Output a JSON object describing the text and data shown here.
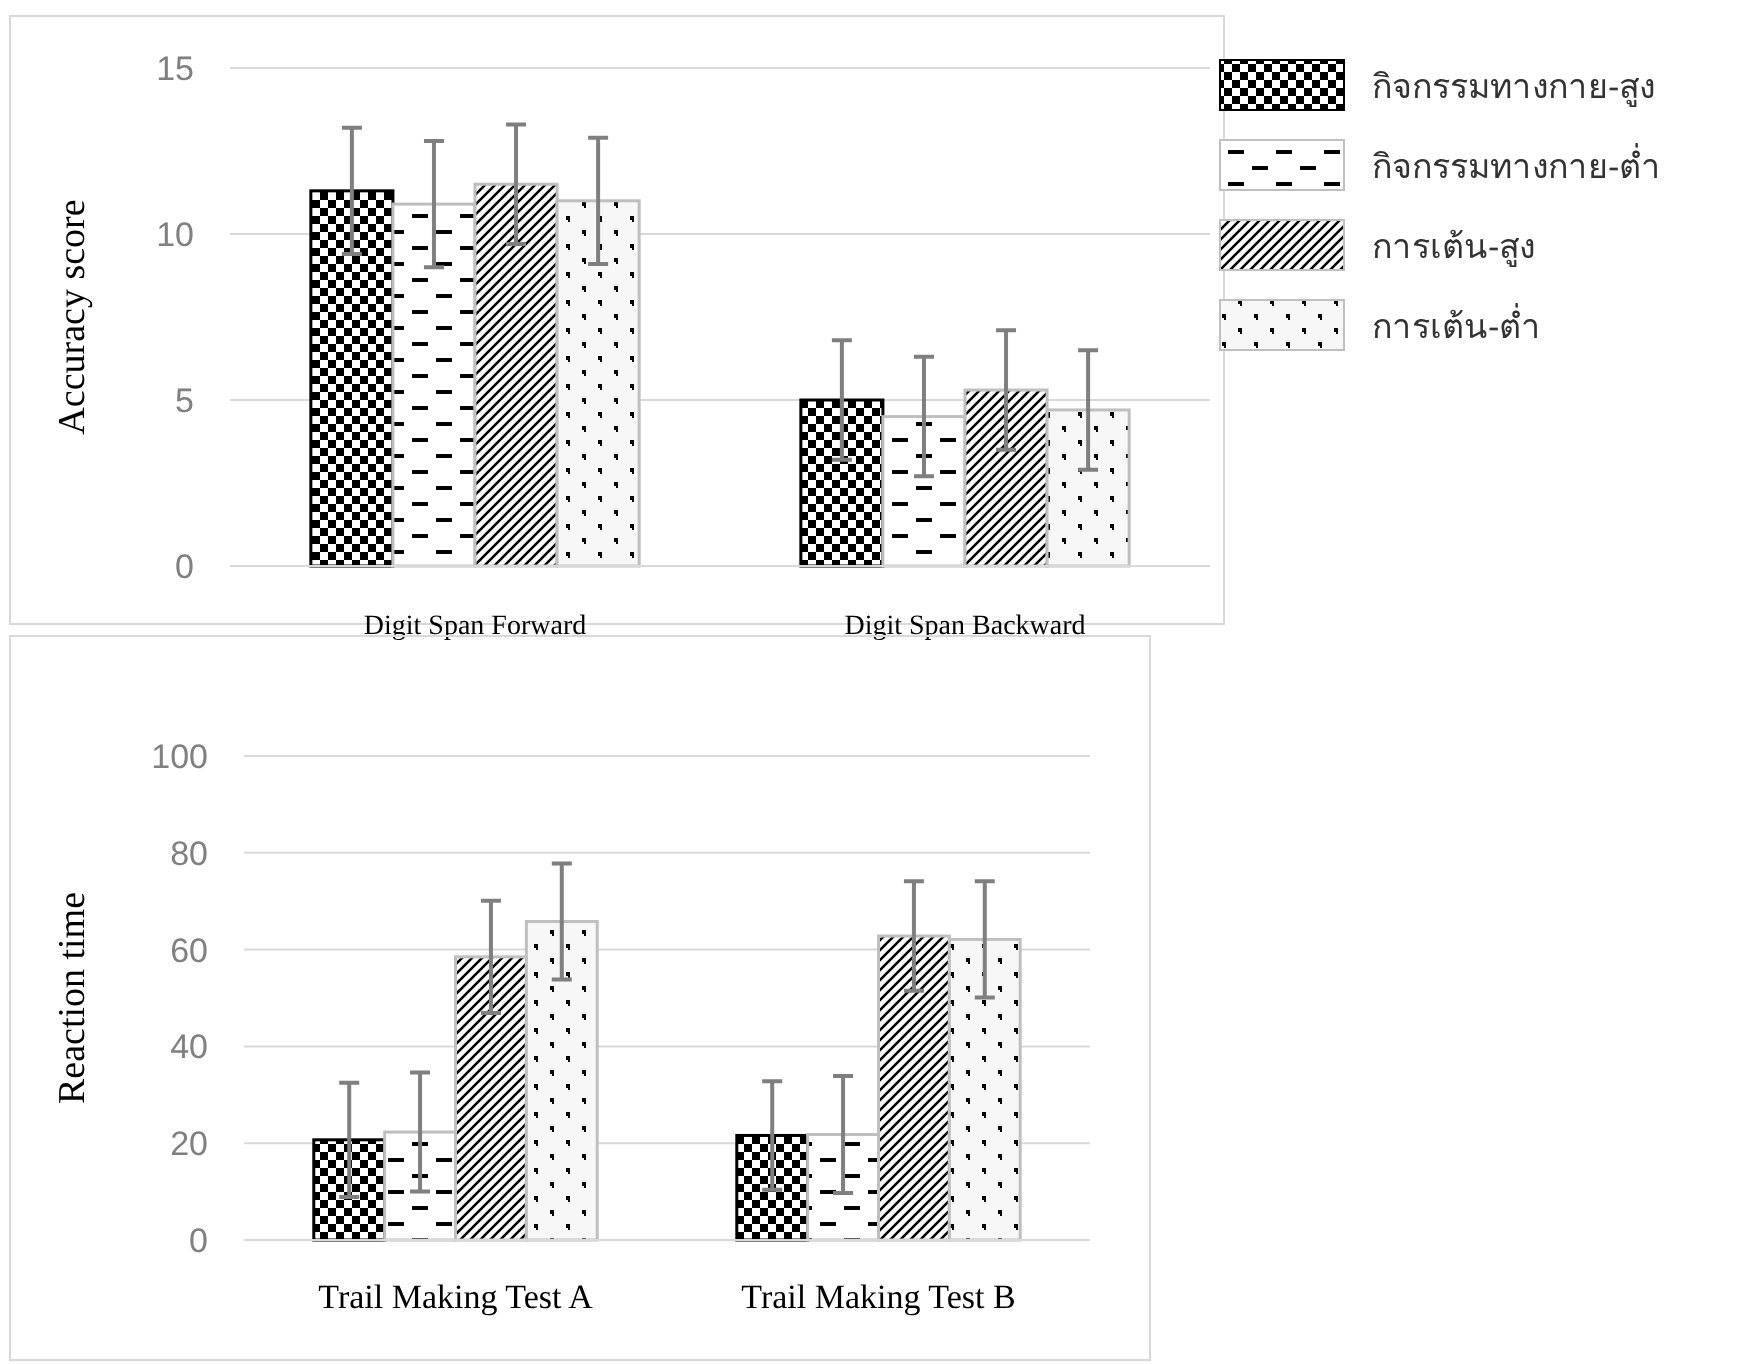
{
  "chart_data": [
    {
      "type": "bar",
      "ylabel": "Accuracy score",
      "categories": [
        "Digit Span Forward",
        "Digit Span Backward"
      ],
      "ylim": [
        0,
        15
      ],
      "yticks": [
        0,
        5,
        10,
        15
      ],
      "grid": "y",
      "legend": "right",
      "series": [
        {
          "name": "กิจกรรมทางกาย-สูง",
          "color": "#000000",
          "values": [
            11.3,
            5.0
          ],
          "errors": [
            1.9,
            1.8
          ]
        },
        {
          "name": "กิจกรรมทางกาย-ต่ำ",
          "color": "#bfbfbf",
          "values": [
            10.9,
            4.5
          ],
          "errors": [
            1.9,
            1.8
          ]
        },
        {
          "name": "การเต้น-สูง",
          "color": "#bfbfbf",
          "values": [
            11.5,
            5.3
          ],
          "errors": [
            1.8,
            1.8
          ]
        },
        {
          "name": "การเต้น-ต่ำ",
          "color": "#bfbfbf",
          "values": [
            11.0,
            4.7
          ],
          "errors": [
            1.9,
            1.8
          ]
        }
      ]
    },
    {
      "type": "bar",
      "ylabel": "Reaction time",
      "categories": [
        "Trail Making Test A",
        "Trail Making Test B"
      ],
      "ylim": [
        0,
        100
      ],
      "yticks": [
        0,
        20,
        40,
        60,
        80,
        100
      ],
      "grid": "y",
      "series": [
        {
          "color": "#000000",
          "values": [
            20.7,
            21.6
          ],
          "errors": [
            11.8,
            11.2
          ]
        },
        {
          "color": "#bfbfbf",
          "values": [
            22.3,
            21.8
          ],
          "errors": [
            12.3,
            12.1
          ]
        },
        {
          "color": "#bfbfbf",
          "values": [
            58.5,
            62.8
          ],
          "errors": [
            11.6,
            11.3
          ]
        },
        {
          "color": "#bfbfbf",
          "values": [
            65.8,
            62.1
          ],
          "errors": [
            12.0,
            12.0
          ]
        }
      ]
    }
  ]
}
